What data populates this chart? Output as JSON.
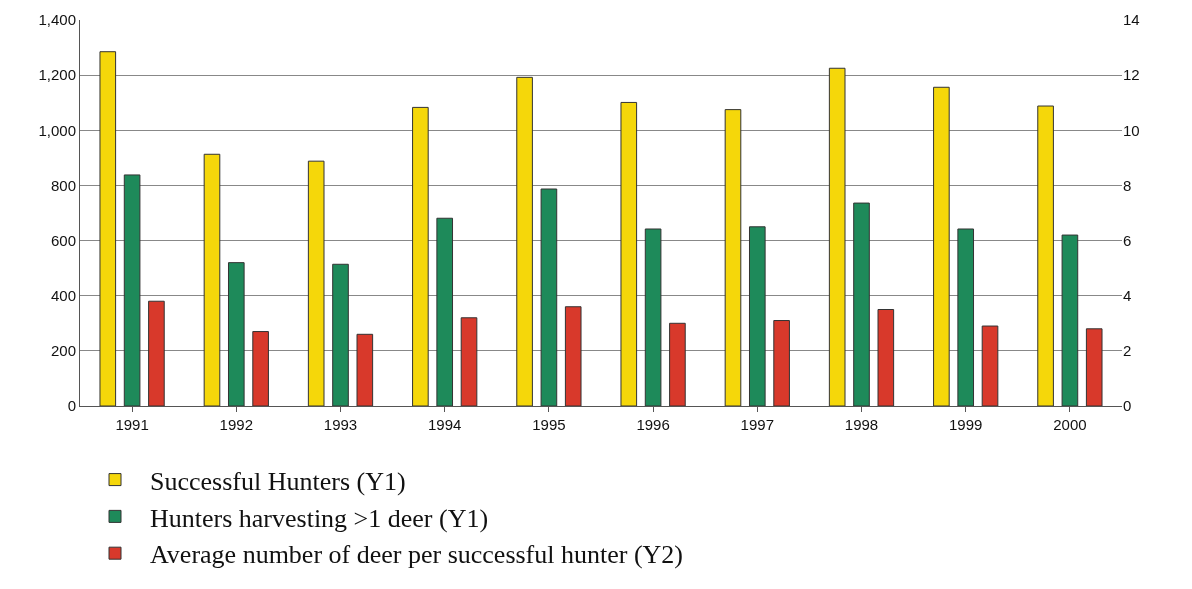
{
  "chart_data": {
    "type": "bar",
    "categories": [
      "1991",
      "1992",
      "1993",
      "1994",
      "1995",
      "1996",
      "1997",
      "1998",
      "1999",
      "2000"
    ],
    "series": [
      {
        "name": "Successful Hunters (Y1)",
        "color": "#f5d70a",
        "values": [
          1285,
          913,
          888,
          1083,
          1192,
          1101,
          1075,
          1225,
          1156,
          1088
        ]
      },
      {
        "name": "Hunters harvesting >1 deer (Y1)",
        "color": "#1e8a5a",
        "values": [
          838,
          520,
          514,
          681,
          787,
          642,
          650,
          736,
          642,
          620
        ]
      },
      {
        "name": "Average number of deer per successful hunter (Y2)",
        "color": "#d8392b",
        "axis": "y2",
        "values": [
          3.8,
          2.7,
          2.6,
          3.2,
          3.6,
          3.0,
          3.1,
          3.5,
          2.9,
          2.8
        ]
      }
    ],
    "ylim": [
      0,
      1400
    ],
    "yticks": [
      0,
      {
        "value": 200,
        "label": "200"
      },
      {
        "value": 400,
        "label": "400"
      },
      {
        "value": 600,
        "label": "600"
      },
      {
        "value": 800,
        "label": "800"
      },
      {
        "value": 1000,
        "label": "1,000"
      },
      {
        "value": 1200,
        "label": "1,200"
      },
      {
        "value": 1400,
        "label": "1,400"
      }
    ],
    "y2lim": [
      0,
      14
    ],
    "y2ticks": [
      0,
      2,
      4,
      6,
      8,
      10,
      12,
      14
    ],
    "grid": "y",
    "legend": "bottom"
  }
}
